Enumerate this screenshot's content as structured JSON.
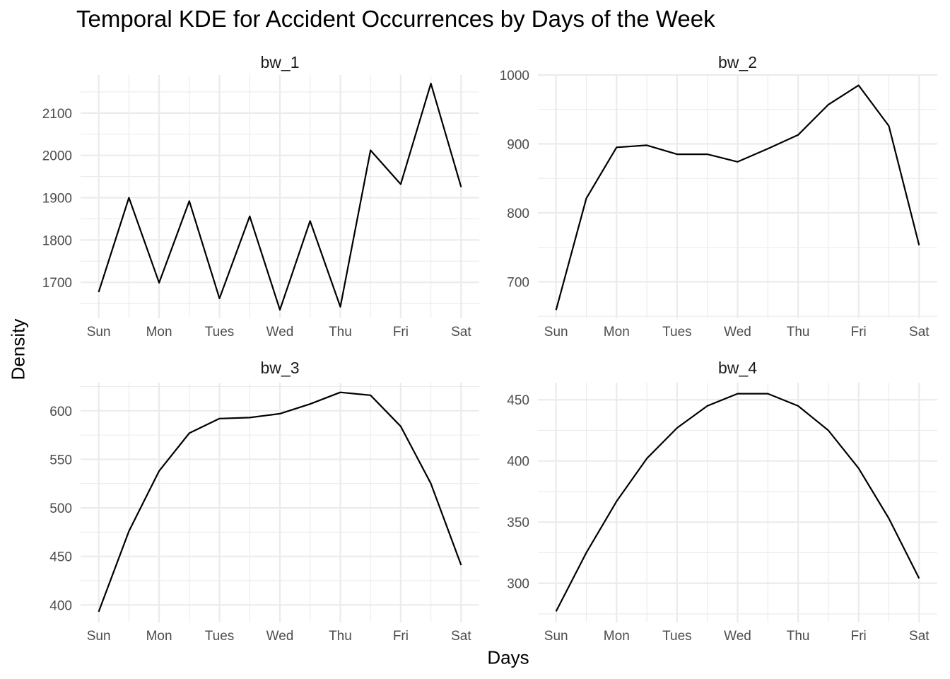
{
  "title": "Temporal KDE for Accident Occurrences by Days of the Week",
  "xlabel": "Days",
  "ylabel": "Density",
  "chart_data": [
    {
      "type": "line",
      "facet": "bw_1",
      "categories": [
        "Sun",
        "Mon",
        "Tues",
        "Wed",
        "Thu",
        "Fri",
        "Sat"
      ],
      "x": [
        0,
        0.5,
        1,
        1.5,
        2,
        2.5,
        3,
        3.5,
        4,
        4.5,
        5,
        5.5,
        6
      ],
      "values": [
        1677,
        1900,
        1699,
        1892,
        1662,
        1856,
        1635,
        1845,
        1642,
        2012,
        1932,
        2170,
        1925
      ],
      "yticks": [
        1700,
        1800,
        1900,
        2000,
        2100
      ],
      "ylim": [
        1615,
        2190
      ],
      "grid": true
    },
    {
      "type": "line",
      "facet": "bw_2",
      "categories": [
        "Sun",
        "Mon",
        "Tues",
        "Wed",
        "Thu",
        "Fri",
        "Sat"
      ],
      "x": [
        0,
        0.5,
        1,
        1.5,
        2,
        2.5,
        3,
        3.5,
        4,
        4.5,
        5,
        5.5,
        6
      ],
      "values": [
        659,
        821,
        895,
        898,
        885,
        885,
        874,
        893,
        913,
        957,
        985,
        926,
        753
      ],
      "yticks": [
        700,
        800,
        900,
        1000
      ],
      "ylim": [
        647,
        1000
      ],
      "grid": true
    },
    {
      "type": "line",
      "facet": "bw_3",
      "categories": [
        "Sun",
        "Mon",
        "Tues",
        "Wed",
        "Thu",
        "Fri",
        "Sat"
      ],
      "x": [
        0,
        0.5,
        1,
        1.5,
        2,
        2.5,
        3,
        3.5,
        4,
        4.5,
        5,
        5.5,
        6
      ],
      "values": [
        393,
        476,
        538,
        577,
        592,
        593,
        597,
        607,
        619,
        616,
        584,
        525,
        441
      ],
      "yticks": [
        400,
        450,
        500,
        550,
        600
      ],
      "ylim": [
        382,
        629
      ],
      "grid": true
    },
    {
      "type": "line",
      "facet": "bw_4",
      "categories": [
        "Sun",
        "Mon",
        "Tues",
        "Wed",
        "Thu",
        "Fri",
        "Sat"
      ],
      "x": [
        0,
        0.5,
        1,
        1.5,
        2,
        2.5,
        3,
        3.5,
        4,
        4.5,
        5,
        5.5,
        6
      ],
      "values": [
        277,
        325,
        367,
        402,
        427,
        445,
        455,
        455,
        445,
        425,
        394,
        353,
        304
      ],
      "yticks": [
        300,
        350,
        400,
        450
      ],
      "ylim": [
        268,
        464
      ],
      "grid": true
    }
  ]
}
